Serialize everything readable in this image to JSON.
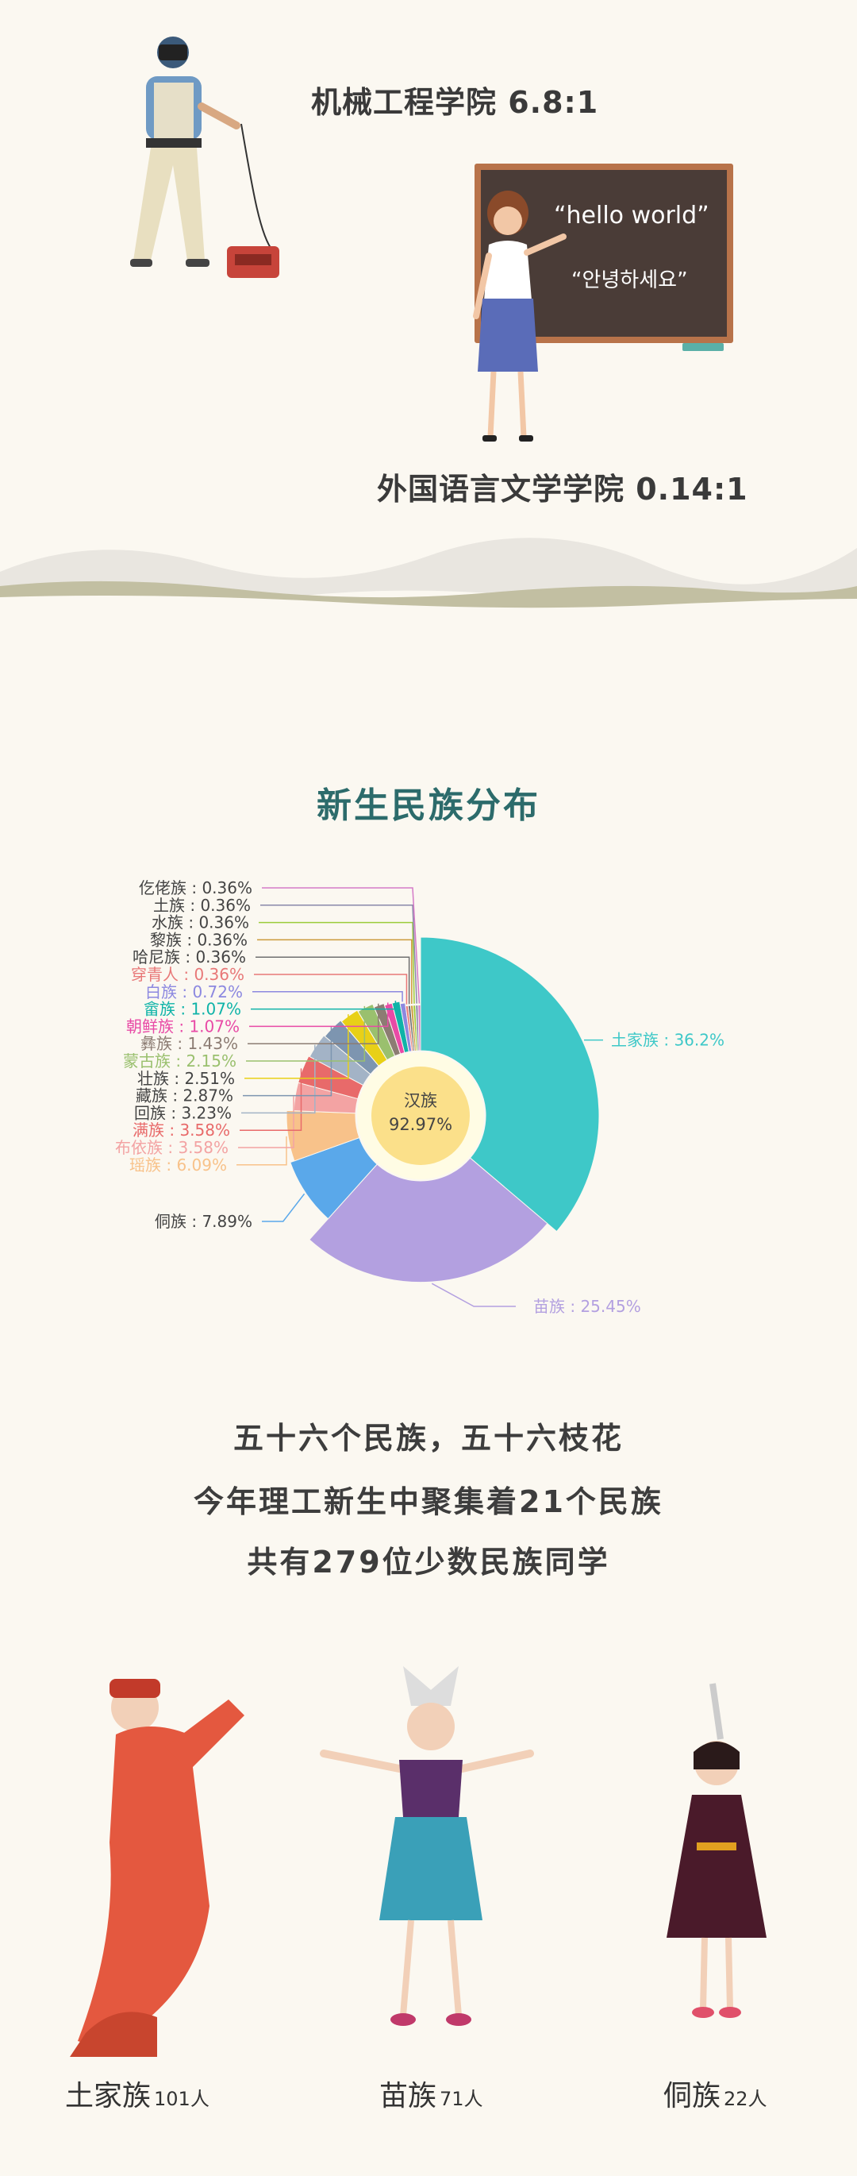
{
  "colleges": {
    "engineering": "机械工程学院 6.8:1",
    "foreign_lang": "外国语言文学学院 0.14:1"
  },
  "blackboard": {
    "line1": "“hello world”",
    "line2": "“안녕하세요”"
  },
  "section_title": "新生民族分布",
  "chart_data": {
    "type": "pie",
    "style": "donut (rose-style ring) with inner circle label",
    "center_label": "汉族",
    "center_value": "92.97%",
    "slices": [
      {
        "label": "土家族",
        "value": 36.2,
        "text": "土家族 : 36.2%",
        "color": "#3ec8c8"
      },
      {
        "label": "苗族",
        "value": 25.45,
        "text": "苗族 : 25.45%",
        "color": "#b3a0e0"
      },
      {
        "label": "侗族",
        "value": 7.89,
        "text": "侗族 : 7.89%",
        "color": "#5aa8ea"
      },
      {
        "label": "瑶族",
        "value": 6.09,
        "text": "瑶族 : 6.09%",
        "color": "#f8c28a"
      },
      {
        "label": "布依族",
        "value": 3.58,
        "text": "布依族 : 3.58%",
        "color": "#f3a3a3"
      },
      {
        "label": "满族",
        "value": 3.58,
        "text": "满族 : 3.58%",
        "color": "#e86a6a"
      },
      {
        "label": "回族",
        "value": 3.23,
        "text": "回族 : 3.23%",
        "color": "#a3b3c6"
      },
      {
        "label": "藏族",
        "value": 2.87,
        "text": "藏族 : 2.87%",
        "color": "#7d95b0"
      },
      {
        "label": "壮族",
        "value": 2.51,
        "text": "壮族 : 2.51%",
        "color": "#e8d017"
      },
      {
        "label": "蒙古族",
        "value": 2.15,
        "text": "蒙古族 : 2.15%",
        "color": "#9ac06e"
      },
      {
        "label": "彝族",
        "value": 1.43,
        "text": "彝族 : 1.43%",
        "color": "#8c7c73"
      },
      {
        "label": "朝鲜族",
        "value": 1.07,
        "text": "朝鲜族 : 1.07%",
        "color": "#e84aa6"
      },
      {
        "label": "畲族",
        "value": 1.07,
        "text": "畲族 : 1.07%",
        "color": "#0fb3a8"
      },
      {
        "label": "白族",
        "value": 0.72,
        "text": "白族 : 0.72%",
        "color": "#8c88e0"
      },
      {
        "label": "穿青人",
        "value": 0.36,
        "text": "穿青人 : 0.36%",
        "color": "#e87878"
      },
      {
        "label": "哈尼族",
        "value": 0.36,
        "text": "哈尼族 : 0.36%",
        "color": "#6f6f6f"
      },
      {
        "label": "黎族",
        "value": 0.36,
        "text": "黎族 : 0.36%",
        "color": "#cc9a3a"
      },
      {
        "label": "水族",
        "value": 0.36,
        "text": "水族 : 0.36%",
        "color": "#9ccc3a"
      },
      {
        "label": "土族",
        "value": 0.36,
        "text": "土族 : 0.36%",
        "color": "#8888aa"
      },
      {
        "label": "仡佬族",
        "value": 0.36,
        "text": "仡佬族 : 0.36%",
        "color": "#d47ac7"
      }
    ]
  },
  "paragraph": {
    "line1": "五十六个民族，五十六枝花",
    "line2": "今年理工新生中聚集着21个民族",
    "line3": "共有279位少数民族同学"
  },
  "captions": [
    {
      "name": "土家族",
      "count": "101人"
    },
    {
      "name": "苗族",
      "count": "71人"
    },
    {
      "name": "侗族",
      "count": "22人"
    }
  ]
}
